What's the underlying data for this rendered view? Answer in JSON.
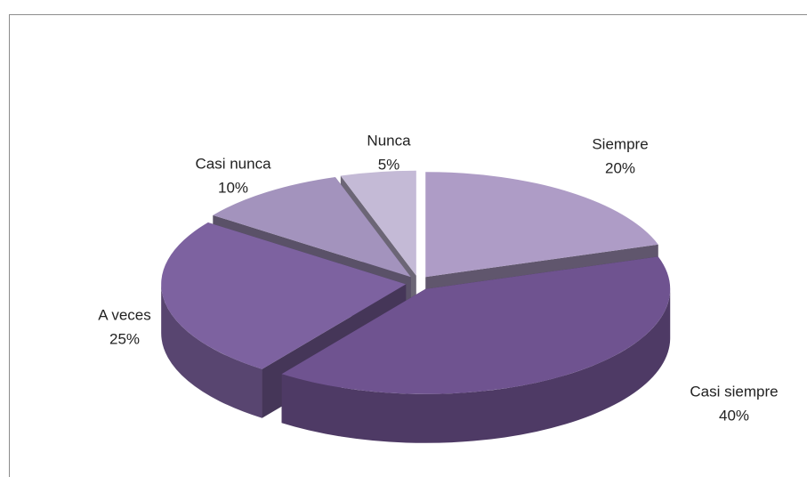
{
  "chart_data": {
    "type": "pie",
    "categories": [
      "Siempre",
      "Casi siempre",
      "A veces",
      "Casi nunca",
      "Nunca"
    ],
    "values": [
      20,
      40,
      25,
      10,
      5
    ],
    "value_labels": [
      "20%",
      "40%",
      "25%",
      "10%",
      "5%"
    ],
    "colors": [
      "#ae9cc6",
      "#6f5390",
      "#7d62a0",
      "#a393bd",
      "#c4bad6"
    ]
  }
}
